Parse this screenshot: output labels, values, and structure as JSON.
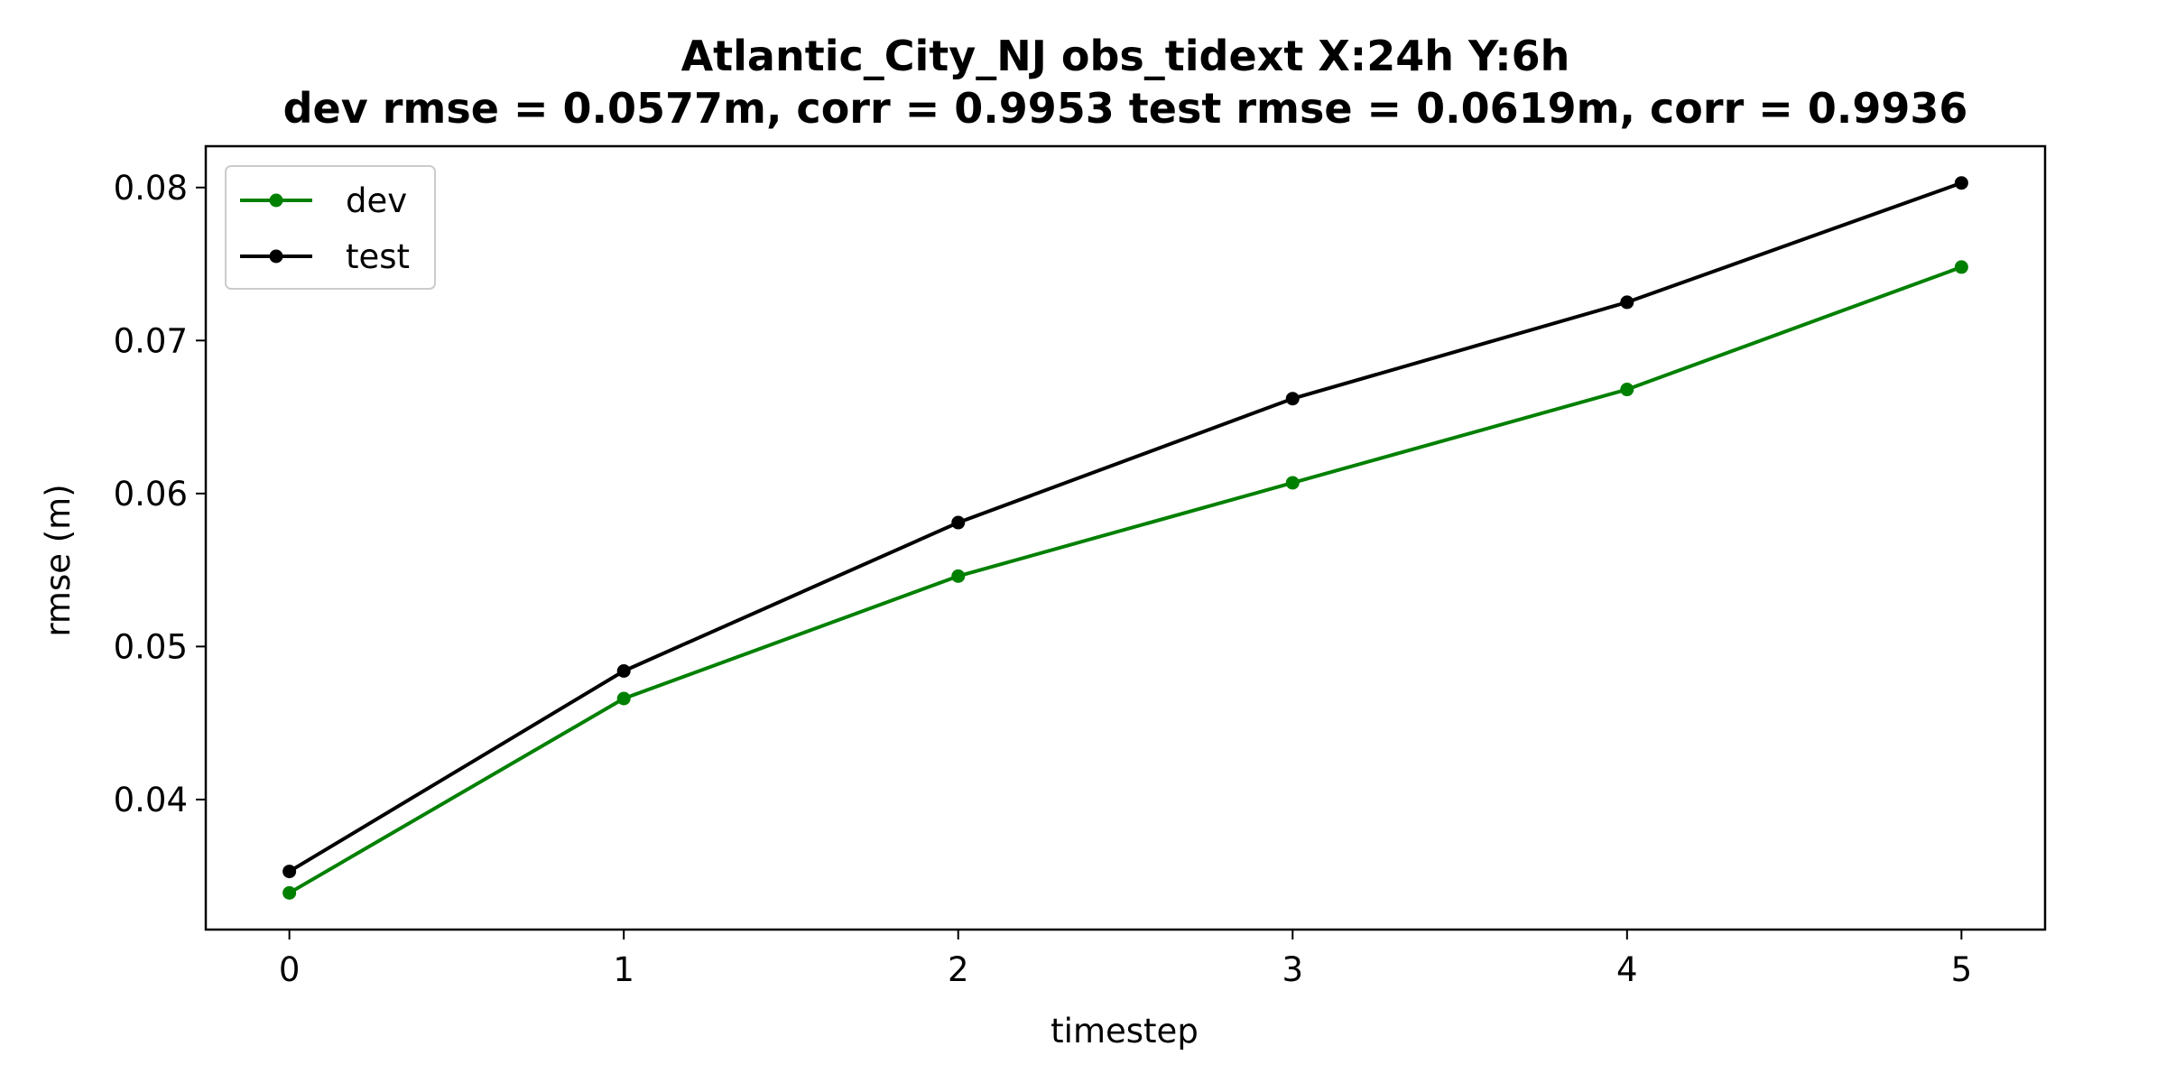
{
  "chart_data": {
    "type": "line",
    "title": "Atlantic_City_NJ   obs_tidext   X:24h   Y:6h",
    "subtitle": "dev rmse = 0.0577m, corr = 0.9953   test rmse = 0.0619m, corr = 0.9936",
    "xlabel": "timestep",
    "ylabel": "rmse (m)",
    "x": [
      0,
      1,
      2,
      3,
      4,
      5
    ],
    "xticks": [
      "0",
      "1",
      "2",
      "3",
      "4",
      "5"
    ],
    "yticks": [
      "0.04",
      "0.05",
      "0.06",
      "0.07",
      "0.08"
    ],
    "ytick_values": [
      0.04,
      0.05,
      0.06,
      0.07,
      0.08
    ],
    "xlim": [
      -0.25,
      5.25
    ],
    "ylim": [
      0.0315,
      0.0827
    ],
    "grid": false,
    "legend_position": "top-left",
    "series": [
      {
        "name": "dev",
        "color": "#008000",
        "marker": "circle",
        "values": [
          0.0339,
          0.0466,
          0.0546,
          0.0607,
          0.0668,
          0.0748
        ]
      },
      {
        "name": "test",
        "color": "#000000",
        "marker": "circle",
        "values": [
          0.0353,
          0.0484,
          0.0581,
          0.0662,
          0.0725,
          0.0803
        ]
      }
    ]
  }
}
